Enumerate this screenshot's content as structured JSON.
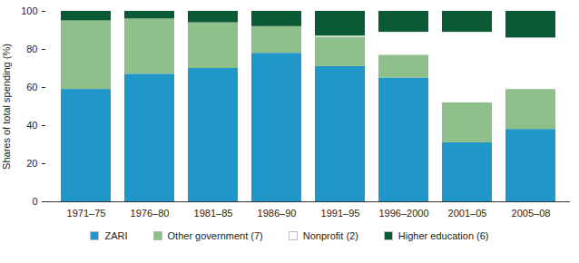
{
  "chart_data": {
    "type": "bar",
    "stacked": true,
    "y_label": "Shares of total spending (%)",
    "categories": [
      "1971–75",
      "1976–80",
      "1981–85",
      "1986–90",
      "1991–95",
      "1996–2000",
      "2001–05",
      "2005–08"
    ],
    "series": [
      {
        "name": "ZARI",
        "color": "#2196c9",
        "values": [
          59,
          67,
          70,
          78,
          71,
          65,
          31,
          38
        ]
      },
      {
        "name": "Other government (7)",
        "color": "#8fbf8b",
        "values": [
          36,
          29,
          24,
          14,
          15.5,
          12,
          21,
          21
        ]
      },
      {
        "name": "Nonprofit (2)",
        "color": "#ffffff",
        "values": [
          0,
          0,
          0,
          0,
          0.5,
          12,
          37,
          27
        ]
      },
      {
        "name": "Higher education (6)",
        "color": "#0b5a36",
        "values": [
          5,
          4,
          6,
          8,
          13,
          11,
          11,
          14
        ]
      }
    ],
    "ylim": [
      0,
      100
    ],
    "yticks": [
      0,
      20,
      40,
      60,
      80,
      100
    ],
    "grid": false,
    "legend": "bottom"
  }
}
